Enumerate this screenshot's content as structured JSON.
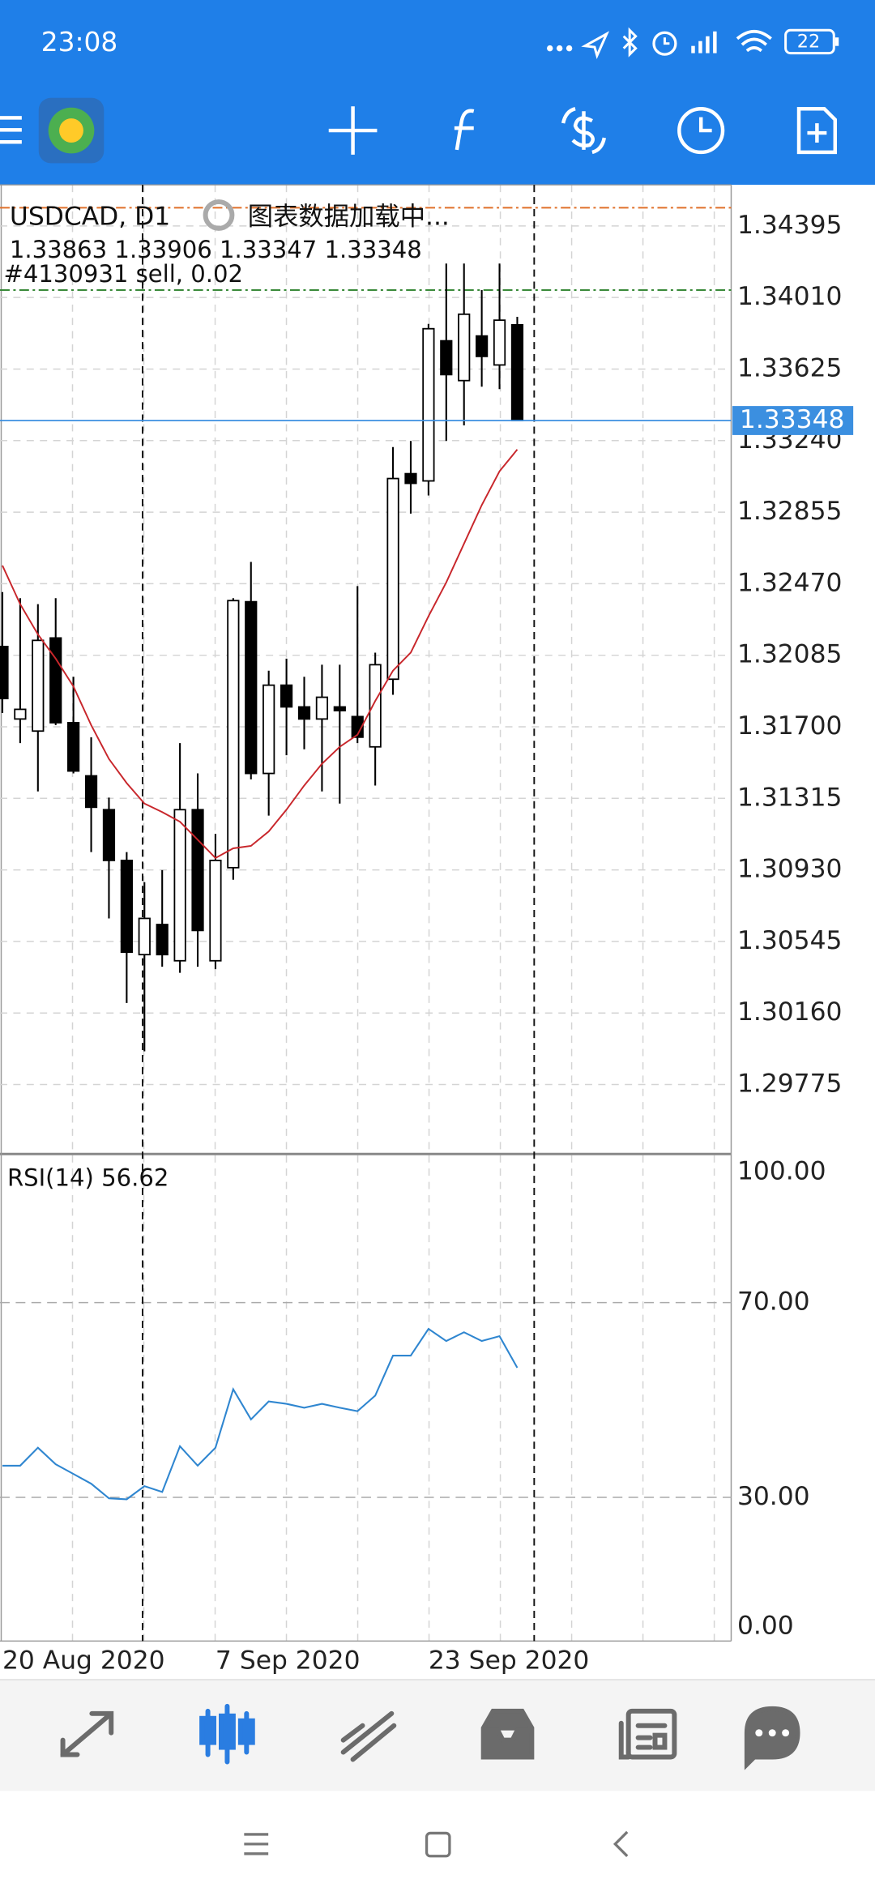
{
  "status": {
    "time": "23:08",
    "battery": 22
  },
  "chart": {
    "symbol": "USDCAD, D1",
    "loading": "图表数据加载中...",
    "order": {
      "label": "#4130931 sell, 0.02",
      "price": 1.3405,
      "color": "#3a8a3a"
    },
    "level_price": 1.34493,
    "level_color": "#e0702a",
    "bid": 1.33348,
    "bid_color": "#3b8fe0",
    "categories": [
      "20 Aug 2020",
      null,
      null,
      null,
      null,
      null,
      null,
      null,
      null,
      null,
      null,
      null,
      "7 Sep 2020",
      null,
      null,
      null,
      null,
      null,
      null,
      null,
      null,
      null,
      null,
      null,
      "23 Sep 2020",
      null,
      null,
      null,
      null,
      null
    ],
    "open": [
      1.32132,
      1.31742,
      1.31677,
      1.32178,
      1.31722,
      1.31436,
      1.31254,
      1.30981,
      1.30474,
      1.30636,
      1.30441,
      1.31254,
      1.30441,
      1.30942,
      1.32373,
      1.31449,
      1.31924,
      1.31807,
      1.31742,
      1.31807,
      1.31755,
      1.31592,
      1.31956,
      1.33062,
      1.33023,
      1.33777,
      1.33563,
      1.33803,
      1.33647,
      1.33863
    ],
    "high": [
      1.32425,
      1.32392,
      1.3236,
      1.32392,
      1.31969,
      1.31644,
      1.31319,
      1.31026,
      1.30864,
      1.30929,
      1.31612,
      1.31449,
      1.31124,
      1.32392,
      1.32587,
      1.32002,
      1.32067,
      1.31969,
      1.32034,
      1.32034,
      1.32457,
      1.32099,
      1.33205,
      1.33238,
      1.33868,
      1.34193,
      1.34193,
      1.3405,
      1.34193,
      1.33906
    ],
    "low": [
      1.31774,
      1.31612,
      1.31352,
      1.31709,
      1.31449,
      1.31026,
      1.30669,
      1.30214,
      1.29954,
      1.30409,
      1.30376,
      1.30409,
      1.30396,
      1.30877,
      1.31417,
      1.31222,
      1.31547,
      1.31579,
      1.31352,
      1.31287,
      1.31612,
      1.31384,
      1.31872,
      1.32847,
      1.32945,
      1.33238,
      1.33322,
      1.3353,
      1.33517,
      1.33347
    ],
    "close": [
      1.31852,
      1.31794,
      1.32165,
      1.31722,
      1.31462,
      1.31267,
      1.30981,
      1.30487,
      1.30669,
      1.30474,
      1.31254,
      1.30604,
      1.30981,
      1.32379,
      1.31449,
      1.31924,
      1.31807,
      1.31742,
      1.31859,
      1.31787,
      1.31644,
      1.32034,
      1.33036,
      1.3301,
      1.33842,
      1.33595,
      1.3392,
      1.33693,
      1.33888,
      1.33348
    ],
    "ma": {
      "color": "#c8262b",
      "values": [
        1.32568,
        1.3236,
        1.32197,
        1.32067,
        1.31917,
        1.31709,
        1.31527,
        1.31397,
        1.31287,
        1.31241,
        1.31189,
        1.31092,
        1.30994,
        1.31046,
        1.31059,
        1.31137,
        1.31254,
        1.31384,
        1.31501,
        1.31592,
        1.31657,
        1.31839,
        1.32002,
        1.32099,
        1.32295,
        1.32477,
        1.32685,
        1.32893,
        1.33075,
        1.33192
      ]
    },
    "ylim": [
      1.29401,
      1.34616
    ],
    "yticks": [
      1.34395,
      {
        "value": 1.3401,
        "label": "1.34010"
      },
      1.33625,
      {
        "value": 1.3324,
        "label": "1.33240"
      },
      1.32855,
      {
        "value": 1.3247,
        "label": "1.32470"
      },
      1.32085,
      {
        "value": 1.317,
        "label": "1.31700"
      },
      1.31315,
      {
        "value": 1.3093,
        "label": "1.30930"
      },
      1.30545,
      {
        "value": 1.3016,
        "label": "1.30160"
      },
      1.29775
    ],
    "rsi": {
      "name": "RSI(14)",
      "color": "#2f86d0",
      "values": [
        36.5,
        36.5,
        40.2,
        36.8,
        34.8,
        32.8,
        29.8,
        29.6,
        32.3,
        31.1,
        40.5,
        36.5,
        40.2,
        52.2,
        46.0,
        49.7,
        49.2,
        48.4,
        49.2,
        48.4,
        47.7,
        50.9,
        59.1,
        59.1,
        64.6,
        62.1,
        63.9,
        62.1,
        63.1,
        56.62
      ],
      "ylim": [
        0,
        100
      ],
      "yticks": [
        {
          "value": 100,
          "label": "100.00"
        },
        {
          "value": 70,
          "label": "70.00"
        },
        {
          "value": 30,
          "label": "30.00"
        },
        {
          "value": 0,
          "label": "0.00"
        }
      ]
    }
  }
}
